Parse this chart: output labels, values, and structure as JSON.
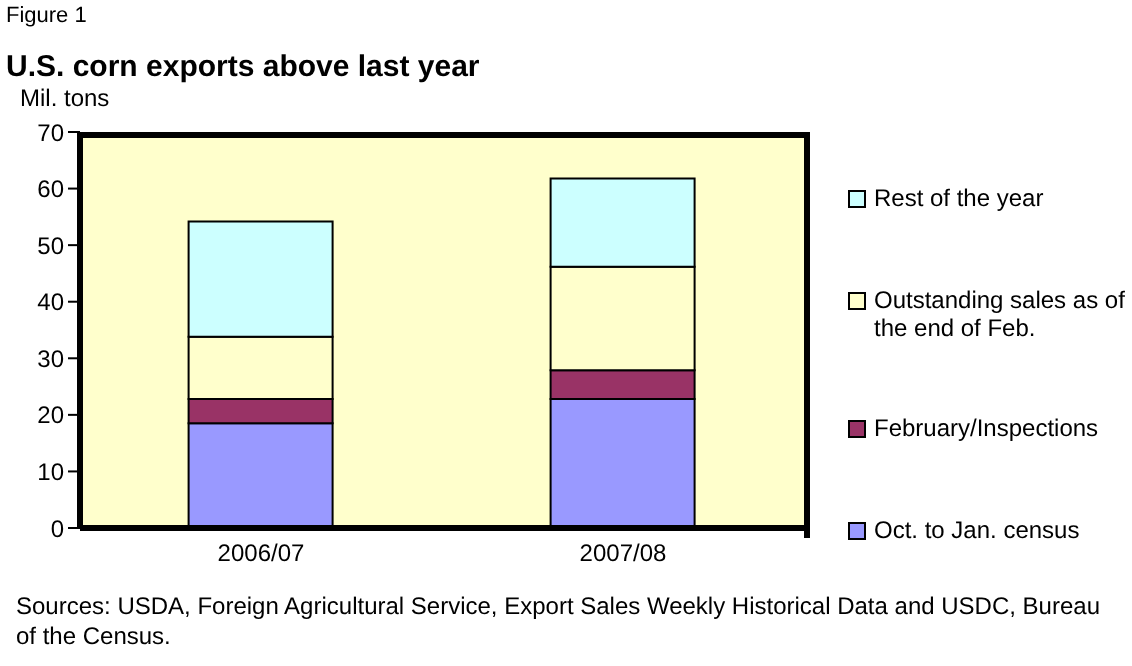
{
  "chart_data": {
    "type": "bar",
    "title": "U.S. corn exports above last year",
    "ylabel": "Mil. tons",
    "annotations": [
      "Figure 1",
      "Sources: USDA, Foreign Agricultural Service, Export Sales Weekly Historical  Data and USDC, Bureau of the Census."
    ],
    "categories": [
      "2006/07",
      "2007/08"
    ],
    "stacked": true,
    "series": [
      {
        "name": "Oct. to Jan. census",
        "color": "#9999ff",
        "values": [
          18.5,
          22.8
        ]
      },
      {
        "name": "February/Inspections",
        "color": "#993366",
        "values": [
          4.3,
          5.1
        ]
      },
      {
        "name": "Outstanding sales as of the end of Feb.",
        "color": "#ffffcc",
        "values": [
          11.0,
          18.3
        ]
      },
      {
        "name": "Rest of the year",
        "color": "#ccffff",
        "values": [
          20.4,
          15.6
        ]
      }
    ],
    "ylim": [
      0,
      70
    ],
    "yticks": [
      0,
      10,
      20,
      30,
      40,
      50,
      60,
      70
    ],
    "grid": false,
    "legend": "right"
  }
}
